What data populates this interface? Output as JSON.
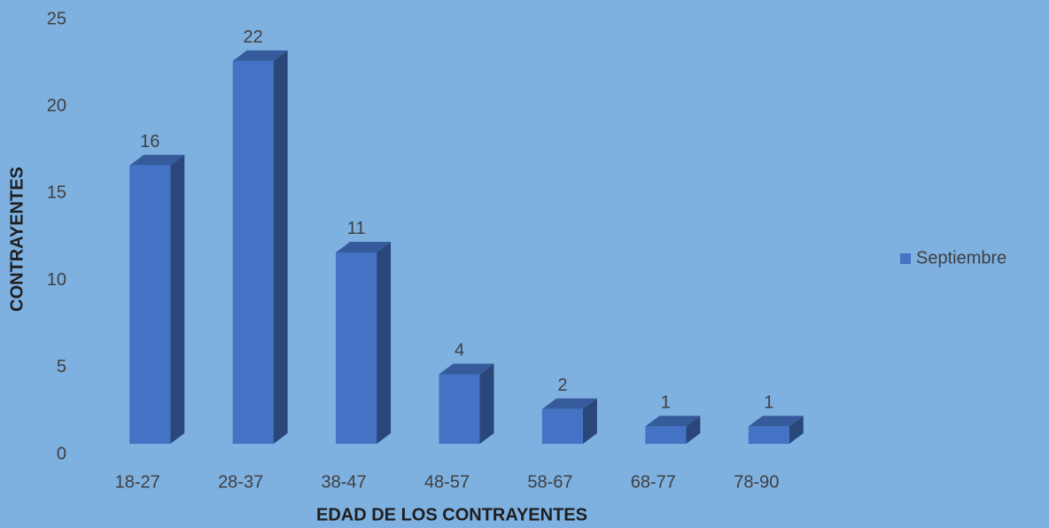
{
  "chart_data": {
    "type": "bar",
    "xlabel": "EDAD DE LOS CONTRAYENTES",
    "ylabel": "CONTRAYENTES",
    "categories": [
      "18-27",
      "28-37",
      "38-47",
      "48-57",
      "58-67",
      "68-77",
      "78-90"
    ],
    "series": [
      {
        "name": "Septiembre",
        "color": "#4472c4",
        "values": [
          16,
          22,
          11,
          4,
          2,
          1,
          1
        ]
      }
    ],
    "ylim": [
      0,
      25
    ],
    "yticks": [
      0,
      5,
      10,
      15,
      20,
      25
    ],
    "grid": false,
    "legend": "right"
  }
}
